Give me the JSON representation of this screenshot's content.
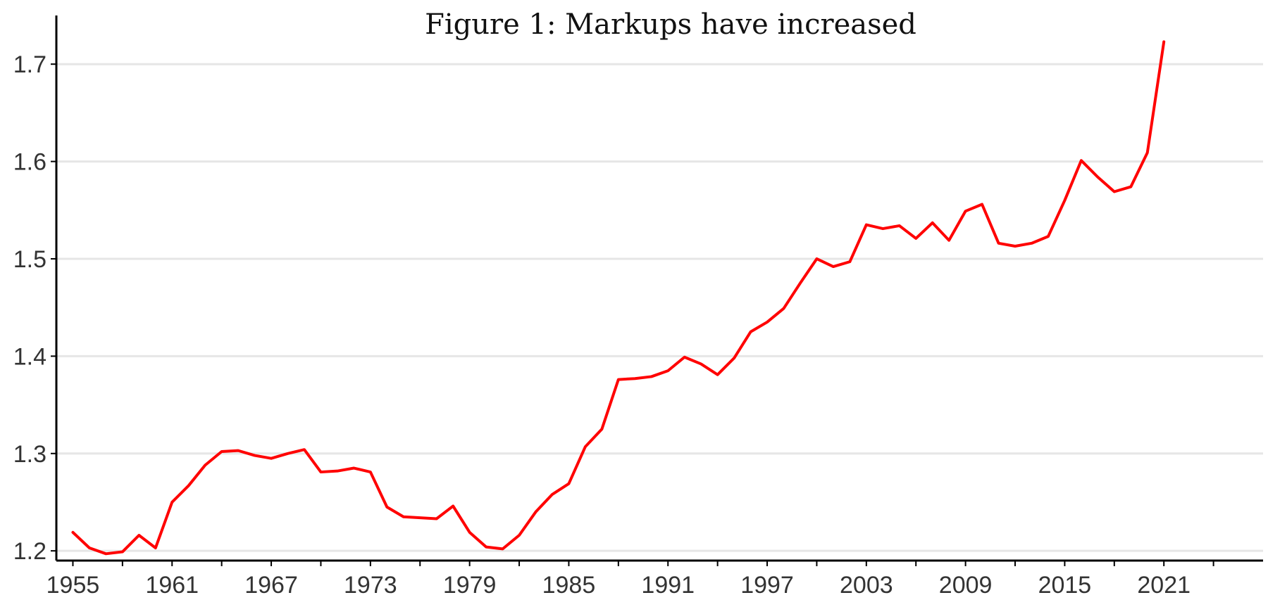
{
  "chart_data": {
    "type": "line",
    "title": "Figure 1: Markups have increased",
    "xlabel": "",
    "ylabel": "",
    "xlim": [
      1954,
      2027
    ],
    "ylim": [
      1.19,
      1.75
    ],
    "x_ticks": [
      1955,
      1961,
      1967,
      1973,
      1979,
      1985,
      1991,
      1997,
      2003,
      2009,
      2015,
      2021
    ],
    "y_ticks": [
      1.2,
      1.3,
      1.4,
      1.5,
      1.6,
      1.7
    ],
    "y_tick_labels": [
      "1.2",
      "1.3",
      "1.4",
      "1.5",
      "1.6",
      "1.7"
    ],
    "grid": "horizontal",
    "legend": "none",
    "x": [
      1955,
      1956,
      1957,
      1958,
      1959,
      1960,
      1961,
      1962,
      1963,
      1964,
      1965,
      1966,
      1967,
      1968,
      1969,
      1970,
      1971,
      1972,
      1973,
      1974,
      1975,
      1976,
      1977,
      1978,
      1979,
      1980,
      1981,
      1982,
      1983,
      1984,
      1985,
      1986,
      1987,
      1988,
      1989,
      1990,
      1991,
      1992,
      1993,
      1994,
      1995,
      1996,
      1997,
      1998,
      1999,
      2000,
      2001,
      2002,
      2003,
      2004,
      2005,
      2006,
      2007,
      2008,
      2009,
      2010,
      2011,
      2012,
      2013,
      2014,
      2015,
      2016,
      2017,
      2018,
      2019,
      2020,
      2021
    ],
    "series": [
      {
        "color": "#ff0000",
        "values": [
          1.219,
          1.203,
          1.197,
          1.199,
          1.216,
          1.203,
          1.25,
          1.267,
          1.288,
          1.302,
          1.303,
          1.298,
          1.295,
          1.3,
          1.304,
          1.281,
          1.282,
          1.285,
          1.281,
          1.245,
          1.235,
          1.234,
          1.233,
          1.246,
          1.219,
          1.204,
          1.202,
          1.216,
          1.24,
          1.258,
          1.269,
          1.307,
          1.325,
          1.376,
          1.377,
          1.379,
          1.385,
          1.399,
          1.392,
          1.381,
          1.398,
          1.425,
          1.435,
          1.449,
          1.475,
          1.5,
          1.492,
          1.497,
          1.535,
          1.531,
          1.534,
          1.521,
          1.537,
          1.519,
          1.549,
          1.556,
          1.516,
          1.513,
          1.516,
          1.523,
          1.56,
          1.601,
          1.584,
          1.569,
          1.574,
          1.609,
          1.723
        ]
      }
    ]
  }
}
